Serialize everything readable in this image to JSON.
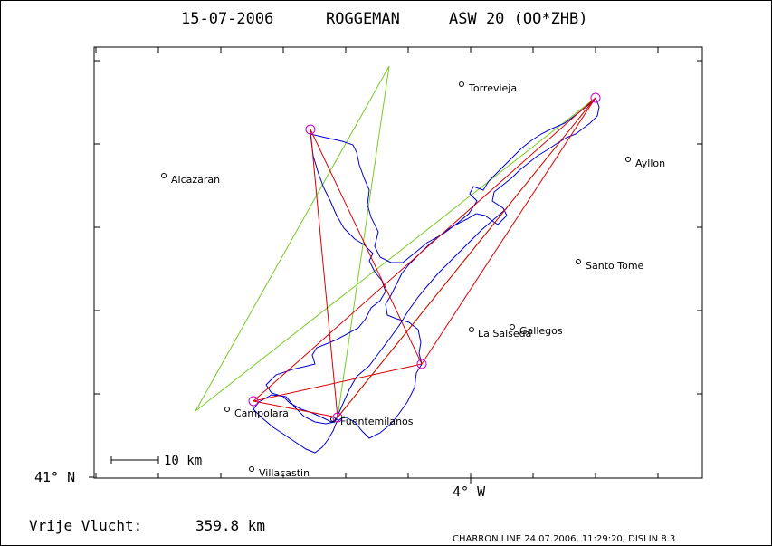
{
  "header": {
    "date": "15-07-2006",
    "pilot": "ROGGEMAN",
    "glider": "ASW 20 (OO*ZHB)"
  },
  "axes": {
    "lat_label": "41° N",
    "lon_label": "4° W"
  },
  "scale_bar": {
    "label": "10 km"
  },
  "places": [
    {
      "name": "Torrevieja"
    },
    {
      "name": "Alcazaran"
    },
    {
      "name": "Ayllon"
    },
    {
      "name": "Santo Tome"
    },
    {
      "name": "Gallegos"
    },
    {
      "name": "La Salseda"
    },
    {
      "name": "Campolara"
    },
    {
      "name": "Fuentemilanos"
    },
    {
      "name": "Villacastin"
    }
  ],
  "footer": {
    "result_label": "Vrije Vlucht:",
    "result_value": "359.8 km",
    "credits": "CHARRON.LINE 24.07.2006, 11:29:20, DISLIN 8.3"
  },
  "colors": {
    "track": "#0000cc",
    "task": "#dd0000",
    "sector": "#77cc22",
    "turnpoint": "#cc00cc",
    "frame": "#000000"
  }
}
